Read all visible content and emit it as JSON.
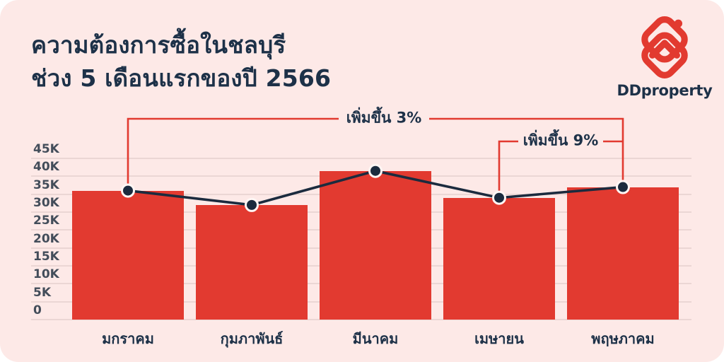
{
  "card": {
    "background": "#FDE9E7"
  },
  "header": {
    "title_line1": "ความต้องการซื้อในชลบุรี",
    "title_line2": "ช่วง 5 เดือนแรกของปี 2566",
    "title_color": "#1D3148"
  },
  "logo": {
    "brand": "DDproperty",
    "icon": "ddproperty-house-chevrons-icon",
    "icon_color": "#E23A30",
    "text_color": "#1D3148"
  },
  "chart_data": {
    "type": "bar",
    "line_overlay": true,
    "title": "ความต้องการซื้อในชลบุรี ช่วง 5 เดือนแรกของปี 2566",
    "categories": [
      "มกราคม",
      "กุมภาพันธ์",
      "มีนาคม",
      "เมษายน",
      "พฤษภาคม"
    ],
    "values": [
      36000,
      32000,
      41500,
      34000,
      37000
    ],
    "line_values": [
      36000,
      32000,
      41500,
      34000,
      37000
    ],
    "ylim": [
      0,
      45000
    ],
    "y_tick_labels": [
      "0",
      "5K",
      "10K",
      "15K",
      "20K",
      "25K",
      "30K",
      "35K",
      "40K",
      "45K"
    ],
    "y_tick_values": [
      0,
      5000,
      10000,
      15000,
      20000,
      25000,
      30000,
      35000,
      40000,
      45000
    ],
    "grid": "horizontal",
    "legend": "none",
    "bar_color": "#E23A30",
    "line_color": "#1B2B3E",
    "marker_color": "#1B2B3E",
    "annotations": [
      {
        "label": "เพิ่มขึ้น 3%",
        "change": "+3%",
        "from_category": "มกราคม",
        "to_category": "พฤษภาคม",
        "from_index": 0,
        "to_index": 4
      },
      {
        "label": "เพิ่มขึ้น 9%",
        "change": "+9%",
        "from_category": "เมษายน",
        "to_category": "พฤษภาคม",
        "from_index": 3,
        "to_index": 4
      }
    ]
  }
}
